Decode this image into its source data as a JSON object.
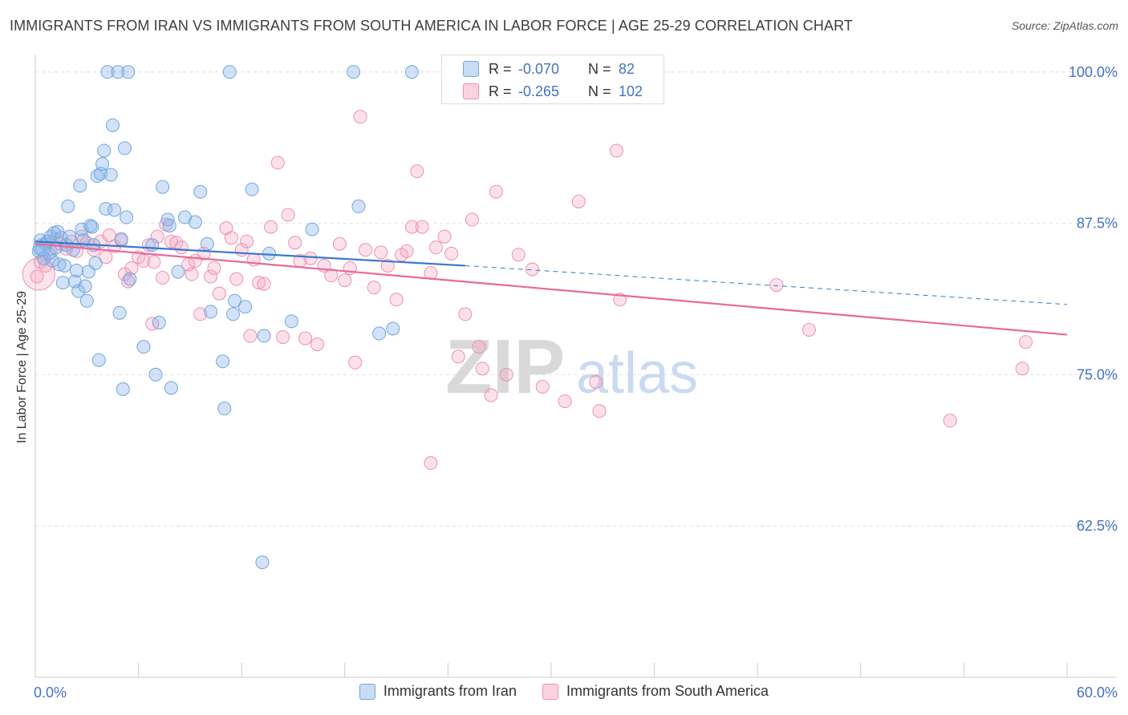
{
  "title": "IMMIGRANTS FROM IRAN VS IMMIGRANTS FROM SOUTH AMERICA IN LABOR FORCE | AGE 25-29 CORRELATION CHART",
  "source": "Source: ZipAtlas.com",
  "watermark": "ZIPatlas",
  "stats": [
    {
      "r_label": "R =",
      "r_value": "-0.070",
      "n_label": "N =",
      "n_value": "82",
      "color": "#6fa8dc"
    },
    {
      "r_label": "R =",
      "r_value": "-0.265",
      "n_label": "N =",
      "n_value": "102",
      "color": "#ef8fb0"
    }
  ],
  "legend": [
    "Immigrants from Iran",
    "Immigrants from South America"
  ],
  "chart_data": {
    "type": "scatter",
    "title": "IMMIGRANTS FROM IRAN VS IMMIGRANTS FROM SOUTH AMERICA IN LABOR FORCE | AGE 25-29 CORRELATION CHART",
    "xlabel": "",
    "ylabel": "In Labor Force | Age 25-29",
    "xlim": [
      0,
      60
    ],
    "ylim": [
      50,
      102.5
    ],
    "x_tick_labels": [
      "0.0%",
      "60.0%"
    ],
    "y_ticks": [
      62.5,
      75.0,
      87.5,
      100.0
    ],
    "y_tick_labels": [
      "62.5%",
      "75.0%",
      "87.5%",
      "100.0%"
    ],
    "series": [
      {
        "name": "Immigrants from Iran",
        "color": "#6fa8dc",
        "trend": {
          "x0": 0,
          "y0": 86.0,
          "x1": 25,
          "y1": 84.0,
          "dashed_to_x": 60,
          "dashed_to_y": 80.8
        },
        "points": [
          [
            0.2,
            85.2
          ],
          [
            0.3,
            86.1
          ],
          [
            0.4,
            85.4
          ],
          [
            0.5,
            84.6
          ],
          [
            0.6,
            85.8
          ],
          [
            0.7,
            86.0
          ],
          [
            0.8,
            85.0
          ],
          [
            0.9,
            86.4
          ],
          [
            1.0,
            84.4
          ],
          [
            1.1,
            86.7
          ],
          [
            1.2,
            85.5
          ],
          [
            1.3,
            86.8
          ],
          [
            1.4,
            84.1
          ],
          [
            1.5,
            86.3
          ],
          [
            1.6,
            82.6
          ],
          [
            1.7,
            84.0
          ],
          [
            1.8,
            85.7
          ],
          [
            1.9,
            88.9
          ],
          [
            2.0,
            86.4
          ],
          [
            2.2,
            85.3
          ],
          [
            2.3,
            82.7
          ],
          [
            2.4,
            83.6
          ],
          [
            2.5,
            81.9
          ],
          [
            2.6,
            90.6
          ],
          [
            2.7,
            87.0
          ],
          [
            2.8,
            86.1
          ],
          [
            2.9,
            82.3
          ],
          [
            3.0,
            81.1
          ],
          [
            3.1,
            83.5
          ],
          [
            3.2,
            87.3
          ],
          [
            3.3,
            87.2
          ],
          [
            3.4,
            85.7
          ],
          [
            3.5,
            84.2
          ],
          [
            3.6,
            91.4
          ],
          [
            3.7,
            76.2
          ],
          [
            3.8,
            91.6
          ],
          [
            3.9,
            92.4
          ],
          [
            4.0,
            93.5
          ],
          [
            4.1,
            88.7
          ],
          [
            4.2,
            100.0
          ],
          [
            4.4,
            91.5
          ],
          [
            4.5,
            95.6
          ],
          [
            4.6,
            88.6
          ],
          [
            4.8,
            100.0
          ],
          [
            4.9,
            80.1
          ],
          [
            5.0,
            86.2
          ],
          [
            5.1,
            73.8
          ],
          [
            5.2,
            93.7
          ],
          [
            5.3,
            88.0
          ],
          [
            5.4,
            100.0
          ],
          [
            5.5,
            82.9
          ],
          [
            6.3,
            77.3
          ],
          [
            6.8,
            85.7
          ],
          [
            7.0,
            75.0
          ],
          [
            7.2,
            79.3
          ],
          [
            7.4,
            90.5
          ],
          [
            7.7,
            87.8
          ],
          [
            7.8,
            87.3
          ],
          [
            7.9,
            73.9
          ],
          [
            8.3,
            83.5
          ],
          [
            8.7,
            88.0
          ],
          [
            9.3,
            87.6
          ],
          [
            9.6,
            90.1
          ],
          [
            10.0,
            85.8
          ],
          [
            10.2,
            80.2
          ],
          [
            10.9,
            76.1
          ],
          [
            11.0,
            72.2
          ],
          [
            11.3,
            100.0
          ],
          [
            11.5,
            80.0
          ],
          [
            11.6,
            81.1
          ],
          [
            12.2,
            80.6
          ],
          [
            12.6,
            90.3
          ],
          [
            13.2,
            59.5
          ],
          [
            13.3,
            78.2
          ],
          [
            13.6,
            85.0
          ],
          [
            14.9,
            79.4
          ],
          [
            16.1,
            87.0
          ],
          [
            18.5,
            100.0
          ],
          [
            18.8,
            88.9
          ],
          [
            20.0,
            78.4
          ],
          [
            20.8,
            78.8
          ],
          [
            21.9,
            100.0
          ]
        ]
      },
      {
        "name": "Immigrants from South America",
        "color": "#ef8fb0",
        "trend": {
          "x0": 0,
          "y0": 85.8,
          "x1": 60,
          "y1": 78.3
        },
        "points": [
          [
            0.1,
            83.1
          ],
          [
            0.3,
            84.3
          ],
          [
            0.6,
            84.0
          ],
          [
            0.9,
            85.1
          ],
          [
            1.2,
            86.2
          ],
          [
            1.5,
            85.8
          ],
          [
            1.8,
            85.4
          ],
          [
            2.1,
            86.0
          ],
          [
            2.4,
            85.2
          ],
          [
            2.7,
            86.4
          ],
          [
            3.0,
            85.9
          ],
          [
            3.4,
            85.3
          ],
          [
            3.8,
            86.0
          ],
          [
            4.1,
            84.7
          ],
          [
            4.3,
            86.5
          ],
          [
            4.6,
            85.6
          ],
          [
            5.0,
            86.1
          ],
          [
            5.2,
            83.3
          ],
          [
            5.4,
            82.7
          ],
          [
            5.6,
            83.8
          ],
          [
            6.0,
            84.7
          ],
          [
            6.3,
            84.4
          ],
          [
            6.6,
            85.7
          ],
          [
            6.9,
            84.3
          ],
          [
            7.1,
            86.4
          ],
          [
            7.4,
            83.0
          ],
          [
            7.6,
            87.4
          ],
          [
            7.9,
            86.0
          ],
          [
            8.2,
            85.9
          ],
          [
            8.5,
            85.5
          ],
          [
            8.9,
            84.1
          ],
          [
            9.1,
            83.3
          ],
          [
            9.3,
            84.4
          ],
          [
            9.6,
            80.0
          ],
          [
            9.8,
            85.0
          ],
          [
            10.2,
            83.1
          ],
          [
            10.4,
            83.8
          ],
          [
            10.7,
            81.7
          ],
          [
            11.1,
            87.1
          ],
          [
            11.4,
            86.3
          ],
          [
            11.7,
            82.9
          ],
          [
            12.0,
            85.3
          ],
          [
            12.3,
            86.0
          ],
          [
            12.5,
            78.2
          ],
          [
            12.7,
            84.5
          ],
          [
            13.0,
            82.6
          ],
          [
            13.3,
            82.5
          ],
          [
            13.7,
            87.2
          ],
          [
            14.1,
            92.5
          ],
          [
            14.4,
            78.1
          ],
          [
            14.7,
            88.2
          ],
          [
            15.1,
            85.9
          ],
          [
            15.4,
            84.4
          ],
          [
            15.7,
            78.0
          ],
          [
            16.0,
            84.6
          ],
          [
            16.4,
            77.5
          ],
          [
            16.8,
            84.0
          ],
          [
            17.2,
            83.2
          ],
          [
            17.7,
            85.8
          ],
          [
            18.0,
            82.8
          ],
          [
            18.3,
            83.8
          ],
          [
            18.6,
            76.0
          ],
          [
            18.9,
            96.3
          ],
          [
            19.2,
            85.3
          ],
          [
            19.7,
            82.2
          ],
          [
            20.1,
            85.1
          ],
          [
            20.5,
            84.0
          ],
          [
            21.0,
            81.2
          ],
          [
            21.3,
            84.9
          ],
          [
            21.6,
            85.2
          ],
          [
            21.9,
            87.2
          ],
          [
            22.2,
            91.8
          ],
          [
            22.5,
            87.2
          ],
          [
            23.0,
            83.4
          ],
          [
            23.3,
            85.5
          ],
          [
            23.8,
            86.4
          ],
          [
            24.2,
            85.0
          ],
          [
            24.6,
            76.5
          ],
          [
            25.0,
            80.0
          ],
          [
            25.4,
            87.8
          ],
          [
            25.8,
            77.3
          ],
          [
            26.0,
            75.5
          ],
          [
            26.5,
            73.3
          ],
          [
            26.8,
            90.1
          ],
          [
            27.4,
            75.0
          ],
          [
            28.1,
            84.9
          ],
          [
            28.6,
            100.0
          ],
          [
            28.9,
            83.7
          ],
          [
            29.5,
            74.0
          ],
          [
            30.8,
            72.8
          ],
          [
            31.6,
            89.3
          ],
          [
            32.6,
            74.4
          ],
          [
            32.8,
            72.0
          ],
          [
            33.8,
            93.5
          ],
          [
            34.0,
            81.2
          ],
          [
            43.1,
            82.4
          ],
          [
            45.0,
            78.7
          ],
          [
            53.2,
            71.2
          ],
          [
            57.4,
            75.5
          ],
          [
            57.6,
            77.7
          ],
          [
            6.8,
            79.2
          ],
          [
            23.0,
            67.7
          ]
        ]
      }
    ]
  }
}
